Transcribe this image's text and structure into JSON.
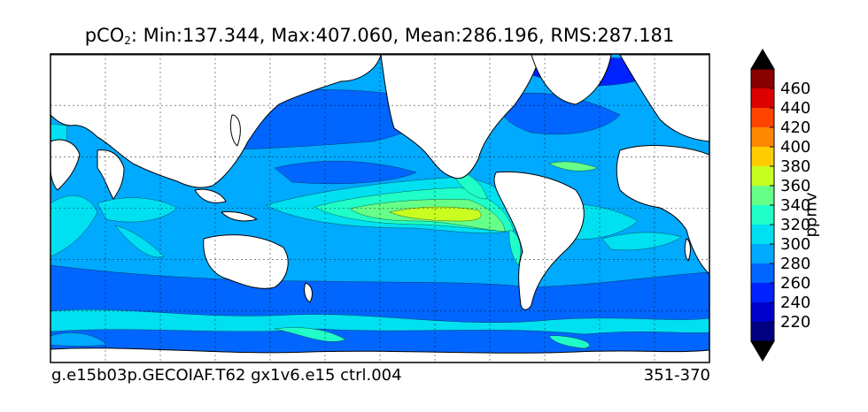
{
  "title": {
    "prefix": "pCO",
    "subscript": "2",
    "stats": ": Min:137.344, Max:407.060, Mean:286.196, RMS:287.181"
  },
  "footer": {
    "case_name": "g.e15b03p.GECOIAF.T62 gx1v6.e15 ctrl.004",
    "year_range": "351-370"
  },
  "colorbar": {
    "label": "ppmv",
    "levels": [
      200,
      220,
      240,
      260,
      280,
      300,
      320,
      340,
      360,
      380,
      400,
      420,
      440,
      460,
      480
    ],
    "tick_labels": [
      "220",
      "240",
      "260",
      "280",
      "300",
      "320",
      "340",
      "360",
      "380",
      "400",
      "420",
      "440",
      "460"
    ],
    "colors": [
      "#000080",
      "#0000cd",
      "#0022ff",
      "#0066ff",
      "#00aaff",
      "#00e0f0",
      "#20ffc8",
      "#66ff88",
      "#c8ff20",
      "#ffcc00",
      "#ff8800",
      "#ff4400",
      "#dd0000",
      "#880000"
    ],
    "extend": "both"
  },
  "map": {
    "projection": "cylindrical",
    "grid": true,
    "land_color": "#ffffff",
    "coastline_color": "#000000"
  },
  "chart_data": {
    "type": "heatmap",
    "variable": "pCO2",
    "units": "ppmv",
    "min": 137.344,
    "max": 407.06,
    "mean": 286.196,
    "rms": 287.181,
    "grid": true
  }
}
